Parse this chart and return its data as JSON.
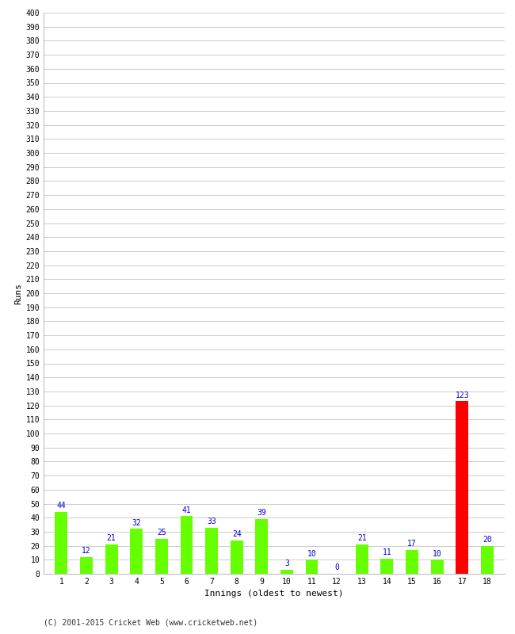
{
  "innings": [
    1,
    2,
    3,
    4,
    5,
    6,
    7,
    8,
    9,
    10,
    11,
    12,
    13,
    14,
    15,
    16,
    17,
    18
  ],
  "runs": [
    44,
    12,
    21,
    32,
    25,
    41,
    33,
    24,
    39,
    3,
    10,
    0,
    21,
    11,
    17,
    10,
    123,
    20
  ],
  "bar_colors": [
    "#66ff00",
    "#66ff00",
    "#66ff00",
    "#66ff00",
    "#66ff00",
    "#66ff00",
    "#66ff00",
    "#66ff00",
    "#66ff00",
    "#66ff00",
    "#66ff00",
    "#66ff00",
    "#66ff00",
    "#66ff00",
    "#66ff00",
    "#66ff00",
    "#ff0000",
    "#66ff00"
  ],
  "xlabel": "Innings (oldest to newest)",
  "ylabel": "Runs",
  "ylim": [
    0,
    400
  ],
  "ytick_step": 10,
  "background_color": "#ffffff",
  "grid_color": "#cccccc",
  "label_color": "#0000cc",
  "footer": "(C) 2001-2015 Cricket Web (www.cricketweb.net)",
  "bar_width": 0.5,
  "label_fontsize": 7,
  "tick_fontsize": 7,
  "axis_label_fontsize": 8,
  "footer_fontsize": 7
}
